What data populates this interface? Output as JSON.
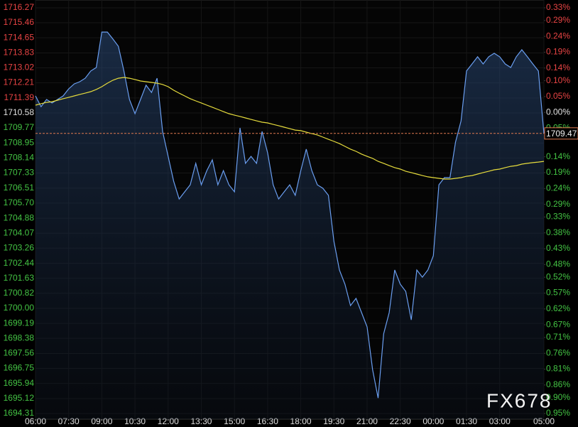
{
  "chart_data": {
    "type": "line",
    "watermark": "FX678",
    "categories": [
      "06:00",
      null,
      null,
      null,
      null,
      null,
      "07:30",
      null,
      null,
      null,
      null,
      null,
      "09:00",
      null,
      null,
      null,
      null,
      null,
      "10:30",
      null,
      null,
      null,
      null,
      null,
      "12:00",
      null,
      null,
      null,
      null,
      null,
      "13:30",
      null,
      null,
      null,
      null,
      null,
      "15:00",
      null,
      null,
      null,
      null,
      null,
      "16:30",
      null,
      null,
      null,
      null,
      null,
      "18:00",
      null,
      null,
      null,
      null,
      null,
      "19:30",
      null,
      null,
      null,
      null,
      null,
      "21:00",
      null,
      null,
      null,
      null,
      null,
      "22:30",
      null,
      null,
      null,
      null,
      null,
      "00:00",
      null,
      null,
      null,
      null,
      null,
      "01:30",
      null,
      null,
      null,
      null,
      null,
      "03:00",
      null,
      null,
      null,
      null,
      null,
      null,
      null,
      "05:00"
    ],
    "series": [
      {
        "color": "#6a9ef0",
        "fill": true,
        "values": [
          1711.5,
          1710.92,
          1711.31,
          1711.12,
          1711.31,
          1711.5,
          1711.88,
          1712.15,
          1712.27,
          1712.46,
          1712.85,
          1713.04,
          1714.96,
          1714.96,
          1714.58,
          1714.19,
          1712.85,
          1711.31,
          1710.54,
          1711.31,
          1712.08,
          1711.69,
          1712.46,
          1709.58,
          1708.23,
          1706.88,
          1705.92,
          1706.31,
          1706.69,
          1707.85,
          1706.69,
          1707.46,
          1708.04,
          1706.69,
          1707.46,
          1706.69,
          1706.31,
          1709.77,
          1707.85,
          1708.23,
          1707.85,
          1709.58,
          1708.42,
          1706.69,
          1705.92,
          1706.31,
          1706.69,
          1706.12,
          1707.46,
          1708.62,
          1707.46,
          1706.69,
          1706.5,
          1706.12,
          1703.62,
          1702.08,
          1701.31,
          1700.15,
          1700.54,
          1699.77,
          1699.0,
          1696.69,
          1695.15,
          1698.62,
          1699.77,
          1702.08,
          1701.31,
          1700.92,
          1699.38,
          1702.08,
          1701.69,
          1702.08,
          1702.85,
          1706.69,
          1707.08,
          1707.08,
          1709.0,
          1710.15,
          1712.85,
          1713.23,
          1713.62,
          1713.23,
          1713.62,
          1713.81,
          1713.62,
          1713.23,
          1713.04,
          1713.62,
          1714.0,
          1713.62,
          1713.23,
          1712.85,
          1709.47
        ]
      },
      {
        "color": "#e6dc3c",
        "fill": false,
        "values": [
          1711.0,
          1711.08,
          1711.15,
          1711.19,
          1711.27,
          1711.35,
          1711.42,
          1711.5,
          1711.58,
          1711.65,
          1711.73,
          1711.85,
          1712.0,
          1712.19,
          1712.35,
          1712.46,
          1712.5,
          1712.46,
          1712.39,
          1712.31,
          1712.27,
          1712.23,
          1712.19,
          1712.12,
          1712.0,
          1711.81,
          1711.65,
          1711.5,
          1711.35,
          1711.23,
          1711.12,
          1711.0,
          1710.89,
          1710.77,
          1710.65,
          1710.54,
          1710.46,
          1710.39,
          1710.31,
          1710.23,
          1710.15,
          1710.08,
          1710.04,
          1709.96,
          1709.89,
          1709.81,
          1709.73,
          1709.65,
          1709.62,
          1709.54,
          1709.46,
          1709.39,
          1709.27,
          1709.15,
          1709.04,
          1708.92,
          1708.77,
          1708.62,
          1708.5,
          1708.35,
          1708.23,
          1708.12,
          1707.96,
          1707.85,
          1707.73,
          1707.62,
          1707.54,
          1707.42,
          1707.35,
          1707.27,
          1707.19,
          1707.12,
          1707.08,
          1707.04,
          1707.0,
          1707.0,
          1707.04,
          1707.08,
          1707.15,
          1707.19,
          1707.27,
          1707.35,
          1707.42,
          1707.5,
          1707.54,
          1707.62,
          1707.69,
          1707.73,
          1707.81,
          1707.85,
          1707.89,
          1707.92,
          1707.96
        ]
      }
    ],
    "last_price": 1709.47,
    "last_price_color": "#e07a50",
    "ylim": [
      1694.31,
      1716.27
    ],
    "yticks": [
      1716.27,
      1715.46,
      1714.65,
      1713.83,
      1713.02,
      1712.21,
      1711.39,
      1710.58,
      1709.77,
      1708.95,
      1708.14,
      1707.33,
      1706.51,
      {
        "value": 1705.7,
        "label": "1705.70"
      },
      1704.88,
      1704.07,
      1703.26,
      1702.44,
      1701.63,
      1700.82,
      {
        "value": 1700.0,
        "label": "1700.00"
      },
      1699.19,
      1698.38,
      1697.56,
      1696.75,
      1695.94,
      1695.12,
      1694.31
    ],
    "y2lim": [
      -0.95,
      0.33
    ],
    "y2ticks": [
      {
        "value": 0.33,
        "label": "0.33%"
      },
      {
        "value": 0.29,
        "label": "0.29%"
      },
      {
        "value": 0.24,
        "label": "0.24%"
      },
      {
        "value": 0.19,
        "label": "0.19%"
      },
      {
        "value": 0.14,
        "label": "0.14%"
      },
      {
        "value": 0.1,
        "label": "0.10%"
      },
      {
        "value": 0.05,
        "label": "0.05%"
      },
      {
        "value": 0,
        "label": "0.00%"
      },
      {
        "value": -0.05,
        "label": "0.05%"
      },
      {
        "value": -0.14,
        "label": "0.14%"
      },
      {
        "value": -0.19,
        "label": "0.19%"
      },
      {
        "value": -0.24,
        "label": "0.24%"
      },
      {
        "value": -0.29,
        "label": "0.29%"
      },
      {
        "value": -0.33,
        "label": "0.33%"
      },
      {
        "value": -0.38,
        "label": "0.38%"
      },
      {
        "value": -0.43,
        "label": "0.43%"
      },
      {
        "value": -0.48,
        "label": "0.48%"
      },
      {
        "value": -0.52,
        "label": "0.52%"
      },
      {
        "value": -0.57,
        "label": "0.57%"
      },
      {
        "value": -0.62,
        "label": "0.62%"
      },
      {
        "value": -0.67,
        "label": "0.67%"
      },
      {
        "value": -0.71,
        "label": "0.71%"
      },
      {
        "value": -0.76,
        "label": "0.76%"
      },
      {
        "value": -0.81,
        "label": "0.81%"
      },
      {
        "value": -0.86,
        "label": "0.86%"
      },
      {
        "value": -0.9,
        "label": "0.90%"
      },
      {
        "value": -0.95,
        "label": "0.95%"
      }
    ],
    "up_color": "#e84444",
    "down_color": "#44c444",
    "base_color": "#e0e0e0",
    "grid": true
  }
}
